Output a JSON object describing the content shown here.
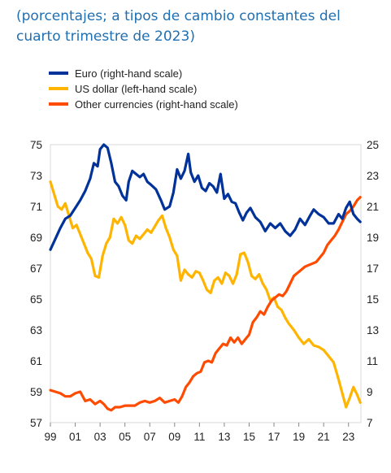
{
  "subtitle": "(porcentajes; a tipos de cambio constantes del cuarto trimestre de 2023)",
  "chart_data": {
    "type": "line",
    "title": "",
    "legend_position": "top-left",
    "grid": false,
    "x_range": [
      1999,
      2024
    ],
    "x_ticks": [
      "99",
      "01",
      "03",
      "05",
      "07",
      "09",
      "11",
      "13",
      "15",
      "17",
      "19",
      "21",
      "23"
    ],
    "left_axis": {
      "ylim": [
        57,
        75
      ],
      "ticks": [
        "75",
        "73",
        "71",
        "69",
        "67",
        "65",
        "63",
        "61",
        "59",
        "57"
      ]
    },
    "right_axis": {
      "ylim": [
        7,
        25
      ],
      "ticks": [
        "25",
        "23",
        "21",
        "19",
        "17",
        "15",
        "13",
        "11",
        "9",
        "7"
      ]
    },
    "series": [
      {
        "name": "Euro (right-hand scale)",
        "axis": "right",
        "color": "#003299",
        "x": [
          1999.0,
          1999.4,
          1999.8,
          2000.2,
          2000.6,
          2001.0,
          2001.4,
          2001.8,
          2002.2,
          2002.5,
          2002.8,
          2003.0,
          2003.3,
          2003.6,
          2003.9,
          2004.2,
          2004.5,
          2004.8,
          2005.1,
          2005.3,
          2005.6,
          2005.9,
          2006.2,
          2006.5,
          2006.8,
          2007.1,
          2007.5,
          2007.9,
          2008.2,
          2008.6,
          2008.9,
          2009.2,
          2009.5,
          2009.8,
          2010.1,
          2010.3,
          2010.6,
          2010.9,
          2011.2,
          2011.5,
          2011.8,
          2012.1,
          2012.4,
          2012.7,
          2013.0,
          2013.3,
          2013.6,
          2013.9,
          2014.2,
          2014.5,
          2014.8,
          2015.1,
          2015.5,
          2015.9,
          2016.3,
          2016.7,
          2017.1,
          2017.5,
          2017.9,
          2018.3,
          2018.7,
          2019.1,
          2019.5,
          2019.9,
          2020.2,
          2020.6,
          2021.0,
          2021.4,
          2021.8,
          2022.2,
          2022.5,
          2022.8,
          2023.1,
          2023.4,
          2023.7,
          2023.95
        ],
        "y": [
          18.2,
          18.9,
          19.6,
          20.2,
          20.4,
          20.9,
          21.4,
          22.0,
          22.8,
          23.8,
          23.6,
          24.7,
          25.0,
          24.8,
          23.8,
          22.6,
          22.3,
          21.7,
          21.4,
          22.6,
          23.3,
          23.1,
          22.9,
          23.1,
          22.6,
          22.4,
          22.1,
          21.4,
          20.8,
          21.0,
          21.9,
          23.4,
          22.8,
          23.3,
          24.4,
          23.2,
          22.6,
          23.0,
          22.2,
          22.0,
          22.5,
          22.3,
          21.9,
          23.1,
          21.5,
          21.8,
          21.3,
          21.2,
          20.6,
          20.1,
          20.6,
          20.9,
          20.3,
          20.0,
          19.4,
          19.9,
          19.6,
          19.9,
          19.4,
          19.1,
          19.5,
          20.2,
          19.8,
          20.4,
          20.8,
          20.5,
          20.3,
          19.9,
          19.9,
          20.5,
          20.2,
          20.9,
          21.3,
          20.5,
          20.2,
          20.0
        ]
      },
      {
        "name": "US dollar (left-hand scale)",
        "axis": "left",
        "color": "#ffb400",
        "x": [
          1999.0,
          1999.3,
          1999.6,
          1999.9,
          2000.2,
          2000.5,
          2000.8,
          2001.1,
          2001.4,
          2001.7,
          2002.0,
          2002.3,
          2002.6,
          2002.9,
          2003.2,
          2003.5,
          2003.8,
          2004.1,
          2004.4,
          2004.7,
          2005.0,
          2005.3,
          2005.6,
          2005.9,
          2006.2,
          2006.5,
          2006.8,
          2007.1,
          2007.4,
          2007.7,
          2008.0,
          2008.3,
          2008.6,
          2008.9,
          2009.2,
          2009.5,
          2009.8,
          2010.1,
          2010.4,
          2010.7,
          2011.0,
          2011.3,
          2011.6,
          2011.9,
          2012.2,
          2012.5,
          2012.8,
          2013.1,
          2013.4,
          2013.7,
          2014.0,
          2014.3,
          2014.6,
          2014.9,
          2015.2,
          2015.5,
          2015.8,
          2016.1,
          2016.4,
          2016.7,
          2017.0,
          2017.3,
          2017.6,
          2017.9,
          2018.2,
          2018.6,
          2019.0,
          2019.4,
          2019.8,
          2020.2,
          2020.6,
          2021.0,
          2021.4,
          2021.8,
          2022.2,
          2022.5,
          2022.8,
          2023.1,
          2023.4,
          2023.7,
          2023.95
        ],
        "y": [
          72.6,
          71.8,
          71.0,
          70.8,
          71.2,
          70.4,
          69.6,
          69.8,
          69.2,
          68.6,
          68.0,
          67.6,
          66.5,
          66.4,
          67.8,
          68.6,
          69.0,
          70.2,
          69.9,
          70.3,
          69.8,
          68.8,
          68.6,
          69.1,
          68.9,
          69.2,
          69.5,
          69.3,
          69.7,
          70.1,
          70.4,
          69.6,
          69.0,
          68.2,
          67.8,
          66.2,
          66.9,
          66.6,
          66.4,
          66.8,
          66.7,
          66.2,
          65.6,
          65.4,
          66.2,
          66.4,
          66.0,
          66.7,
          66.5,
          66.0,
          66.6,
          67.9,
          68.0,
          67.4,
          66.5,
          66.3,
          66.6,
          66.0,
          65.6,
          64.9,
          65.1,
          64.5,
          64.3,
          63.8,
          63.4,
          63.0,
          62.5,
          62.1,
          62.4,
          62.0,
          61.9,
          61.7,
          61.3,
          60.9,
          59.8,
          58.9,
          58.0,
          58.6,
          59.3,
          58.8,
          58.3
        ]
      },
      {
        "name": "Other currencies (right-hand scale)",
        "axis": "right",
        "color": "#ff4b00",
        "x": [
          1999.0,
          1999.4,
          1999.8,
          2000.2,
          2000.6,
          2001.0,
          2001.4,
          2001.8,
          2002.2,
          2002.6,
          2003.0,
          2003.3,
          2003.6,
          2003.9,
          2004.2,
          2004.6,
          2005.0,
          2005.4,
          2005.8,
          2006.2,
          2006.6,
          2007.0,
          2007.4,
          2007.8,
          2008.2,
          2008.6,
          2009.0,
          2009.3,
          2009.6,
          2009.9,
          2010.2,
          2010.5,
          2010.8,
          2011.1,
          2011.4,
          2011.7,
          2012.0,
          2012.3,
          2012.6,
          2012.9,
          2013.2,
          2013.5,
          2013.8,
          2014.1,
          2014.4,
          2014.7,
          2015.0,
          2015.3,
          2015.6,
          2015.9,
          2016.2,
          2016.5,
          2016.8,
          2017.1,
          2017.4,
          2017.7,
          2018.0,
          2018.3,
          2018.6,
          2018.9,
          2019.2,
          2019.5,
          2019.8,
          2020.1,
          2020.4,
          2020.7,
          2021.0,
          2021.3,
          2021.6,
          2021.9,
          2022.2,
          2022.5,
          2022.8,
          2023.1,
          2023.4,
          2023.7,
          2023.95
        ],
        "y": [
          9.1,
          9.0,
          8.9,
          8.7,
          8.7,
          8.9,
          9.0,
          8.4,
          8.5,
          8.2,
          8.4,
          8.2,
          7.9,
          7.8,
          8.0,
          8.0,
          8.1,
          8.1,
          8.1,
          8.3,
          8.4,
          8.3,
          8.4,
          8.6,
          8.3,
          8.4,
          8.5,
          8.3,
          8.7,
          9.3,
          9.6,
          10.0,
          10.2,
          10.3,
          10.9,
          11.0,
          10.9,
          11.5,
          11.8,
          12.1,
          12.0,
          12.5,
          12.2,
          12.5,
          12.1,
          12.4,
          12.7,
          13.5,
          13.8,
          14.2,
          14.0,
          14.5,
          14.9,
          15.1,
          15.3,
          15.2,
          15.5,
          16.0,
          16.5,
          16.7,
          16.9,
          17.1,
          17.2,
          17.3,
          17.4,
          17.7,
          18.0,
          18.5,
          18.8,
          19.1,
          19.5,
          20.0,
          20.5,
          20.7,
          21.0,
          21.4,
          21.6
        ]
      }
    ]
  }
}
